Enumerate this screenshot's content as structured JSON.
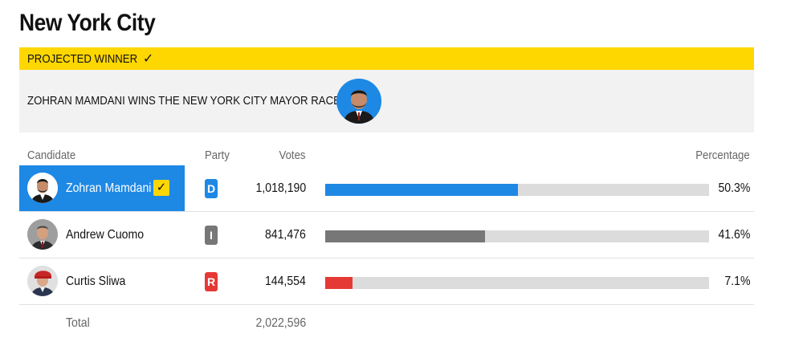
{
  "page": {
    "title": "New York City"
  },
  "winner": {
    "banner_label": "PROJECTED WINNER",
    "banner_icon": "check-icon",
    "headline": "ZOHRAN MAMDANI WINS THE NEW YORK CITY MAYOR RACE",
    "accent_color": "#ffd700",
    "panel_color": "#f2f2f2"
  },
  "table": {
    "headers": {
      "candidate": "Candidate",
      "party": "Party",
      "votes": "Votes",
      "percentage": "Percentage"
    },
    "rows": [
      {
        "name": "Zohran Mamdani",
        "party": "D",
        "party_color": "#1e88e5",
        "votes": "1,018,190",
        "percentage": "50.3%",
        "share": 0.503,
        "bar_color": "#1e88e5",
        "winner": true
      },
      {
        "name": "Andrew Cuomo",
        "party": "I",
        "party_color": "#777777",
        "votes": "841,476",
        "percentage": "41.6%",
        "share": 0.416,
        "bar_color": "#777777",
        "winner": false
      },
      {
        "name": "Curtis Sliwa",
        "party": "R",
        "party_color": "#e53935",
        "votes": "144,554",
        "percentage": "7.1%",
        "share": 0.071,
        "bar_color": "#e53935",
        "winner": false
      }
    ],
    "total": {
      "label": "Total",
      "votes": "2,022,596"
    }
  }
}
